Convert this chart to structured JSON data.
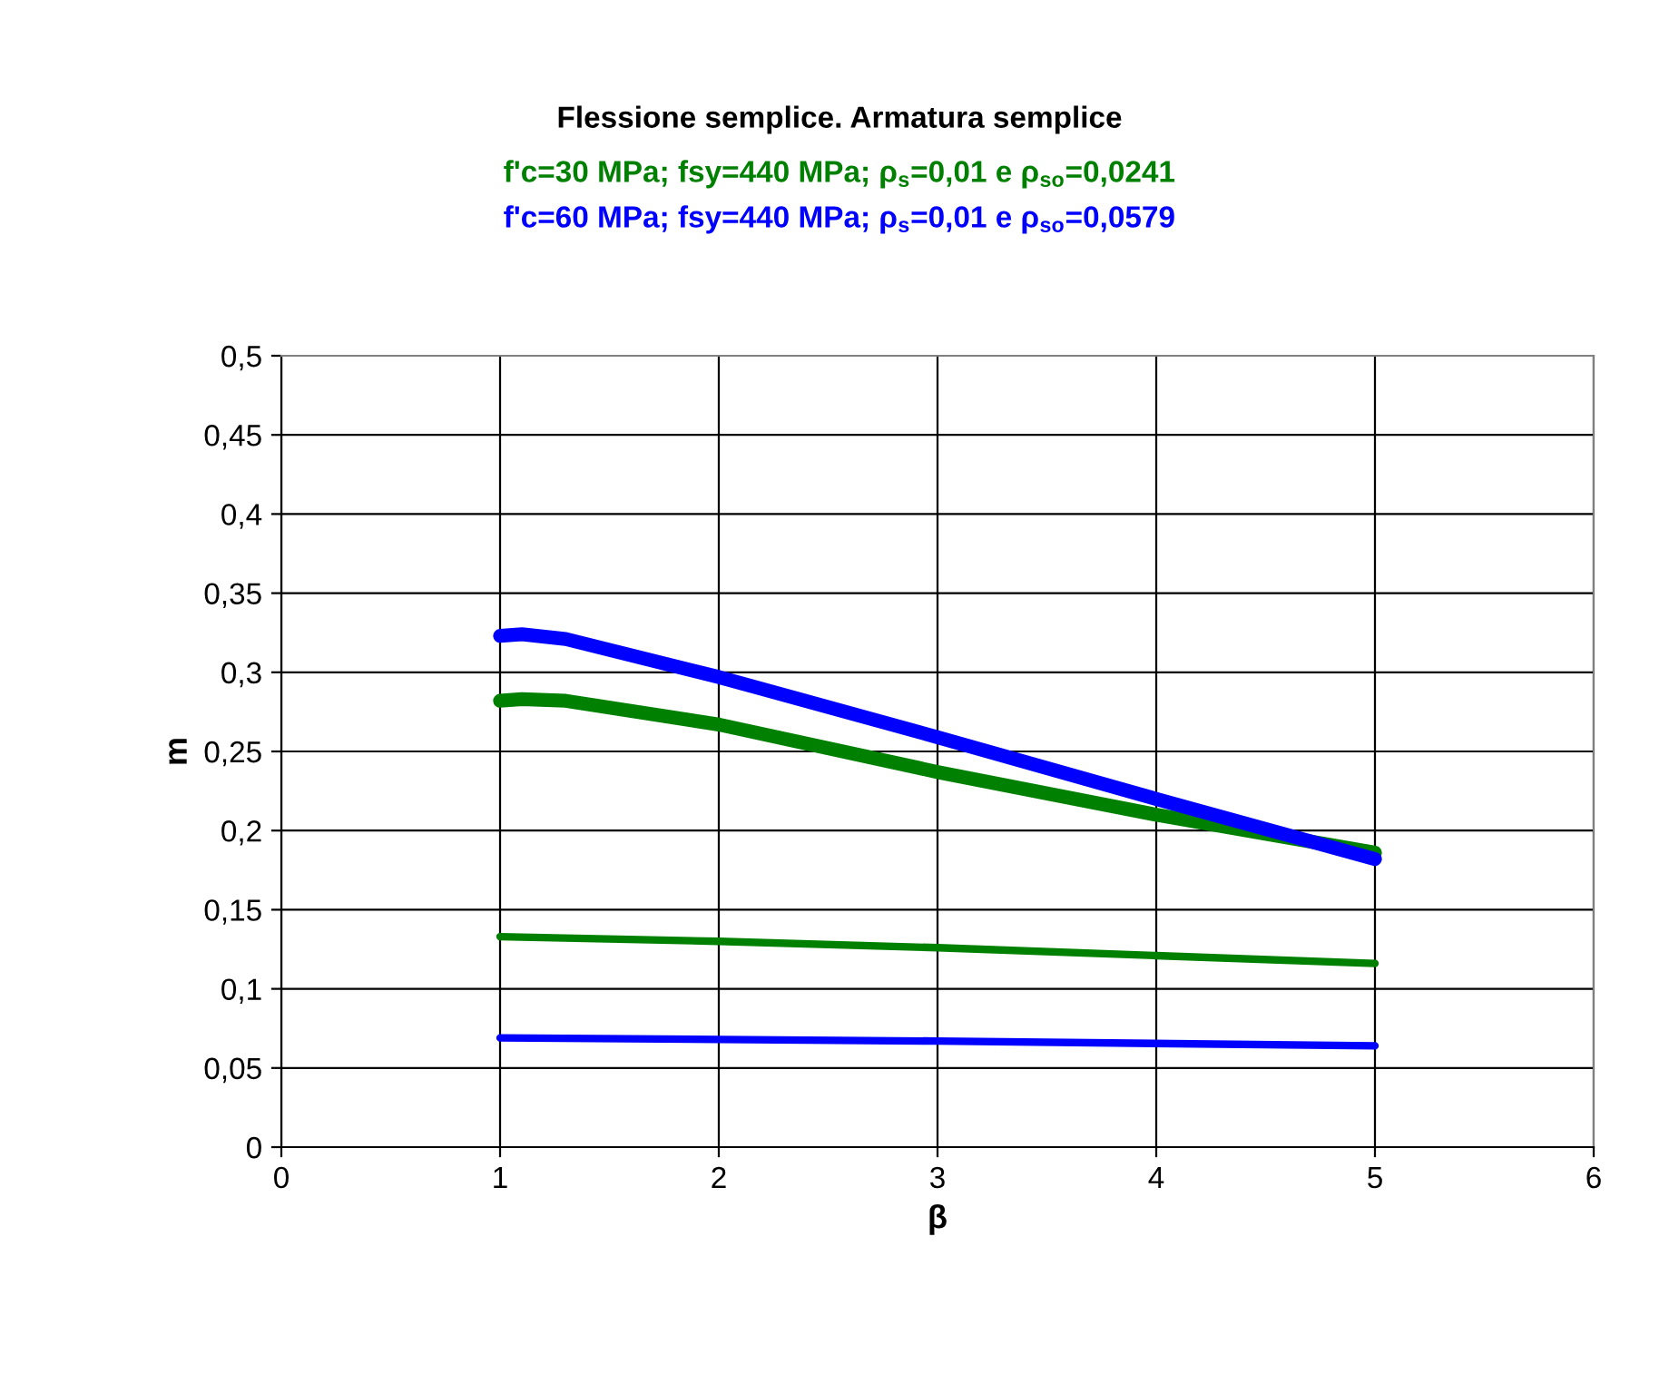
{
  "chart_data": {
    "type": "line",
    "title": "Flessione semplice. Armatura semplice",
    "xlabel": "β",
    "ylabel": "m",
    "xlim": [
      0,
      6
    ],
    "xticks": [
      0,
      1,
      2,
      3,
      4,
      5,
      6
    ],
    "ylim": [
      0,
      0.5
    ],
    "yticks": [
      {
        "value": 0,
        "label": "0"
      },
      {
        "value": 0.05,
        "label": "0,05"
      },
      {
        "value": 0.1,
        "label": "0,1"
      },
      {
        "value": 0.15,
        "label": "0,15"
      },
      {
        "value": 0.2,
        "label": "0,2"
      },
      {
        "value": 0.25,
        "label": "0,25"
      },
      {
        "value": 0.3,
        "label": "0,3"
      },
      {
        "value": 0.35,
        "label": "0,35"
      },
      {
        "value": 0.4,
        "label": "0,4"
      },
      {
        "value": 0.45,
        "label": "0,45"
      },
      {
        "value": 0.5,
        "label": "0,5"
      }
    ],
    "annotations": [
      "f'c=30 MPa; fsy=440 MPa; ρ$_{s}$=0,01 e ρ$_{so}$=0,0241",
      "f'c=60 MPa; fsy=440 MPa; ρ$_{s}$=0,01 e ρ$_{so}$=0,0579"
    ],
    "grid": true,
    "legend": false,
    "marker": "none",
    "line_style": "solid",
    "series": [
      {
        "color": "#008000",
        "x": [
          1,
          1.1,
          1.3,
          2,
          3,
          4,
          5
        ],
        "values": [
          0.282,
          0.283,
          0.282,
          0.267,
          0.237,
          0.21,
          0.186
        ]
      },
      {
        "color": "#0000ff",
        "x": [
          1,
          1.1,
          1.3,
          2,
          3,
          4,
          5
        ],
        "values": [
          0.323,
          0.324,
          0.321,
          0.297,
          0.259,
          0.22,
          0.182
        ]
      },
      {
        "color": "#008000",
        "x": [
          1,
          2,
          3,
          4,
          5
        ],
        "values": [
          0.133,
          0.13,
          0.126,
          0.121,
          0.116
        ]
      },
      {
        "color": "#0000ff",
        "x": [
          1,
          3,
          5
        ],
        "values": [
          0.069,
          0.067,
          0.064
        ]
      }
    ]
  }
}
